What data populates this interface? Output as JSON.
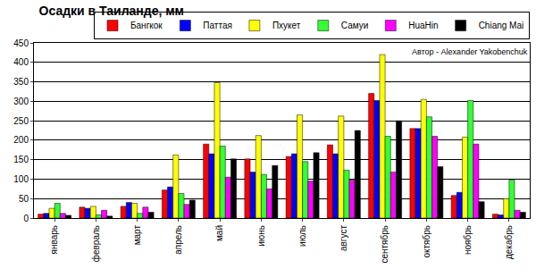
{
  "chart_data": {
    "type": "bar",
    "title": "Осадки в Таиланде, мм",
    "annotations": [
      "Автор - Alexander Yakobenchuk"
    ],
    "categories": [
      "январь",
      "февраль",
      "март",
      "апрель",
      "май",
      "июнь",
      "июль",
      "август",
      "сентябрь",
      "октябрь",
      "ноябрь",
      "декабрь"
    ],
    "series": [
      {
        "name": "Бангкок",
        "color": "#ff0000",
        "values": [
          10,
          28,
          30,
          72,
          190,
          152,
          158,
          188,
          320,
          230,
          58,
          10
        ]
      },
      {
        "name": "Паттая",
        "color": "#0000ff",
        "values": [
          12,
          25,
          40,
          80,
          165,
          118,
          165,
          165,
          302,
          230,
          66,
          8
        ]
      },
      {
        "name": "Пхукет",
        "color": "#ffff00",
        "values": [
          25,
          30,
          38,
          162,
          348,
          212,
          265,
          262,
          420,
          305,
          208,
          50
        ]
      },
      {
        "name": "Самуи",
        "color": "#33ff33",
        "values": [
          38,
          8,
          12,
          63,
          185,
          112,
          145,
          123,
          210,
          260,
          302,
          98
        ]
      },
      {
        "name": "HuaHin",
        "color": "#ff00ff",
        "values": [
          12,
          20,
          28,
          35,
          105,
          75,
          95,
          98,
          118,
          210,
          190,
          20
        ]
      },
      {
        "name": "Chiang Mai",
        "color": "#000000",
        "values": [
          7,
          5,
          15,
          46,
          152,
          135,
          168,
          225,
          250,
          132,
          42,
          15
        ]
      }
    ],
    "ylim": [
      0,
      450
    ],
    "yticks": [
      0,
      50,
      100,
      150,
      200,
      250,
      300,
      350,
      400,
      450
    ],
    "grid": true,
    "legend": "upper right"
  }
}
